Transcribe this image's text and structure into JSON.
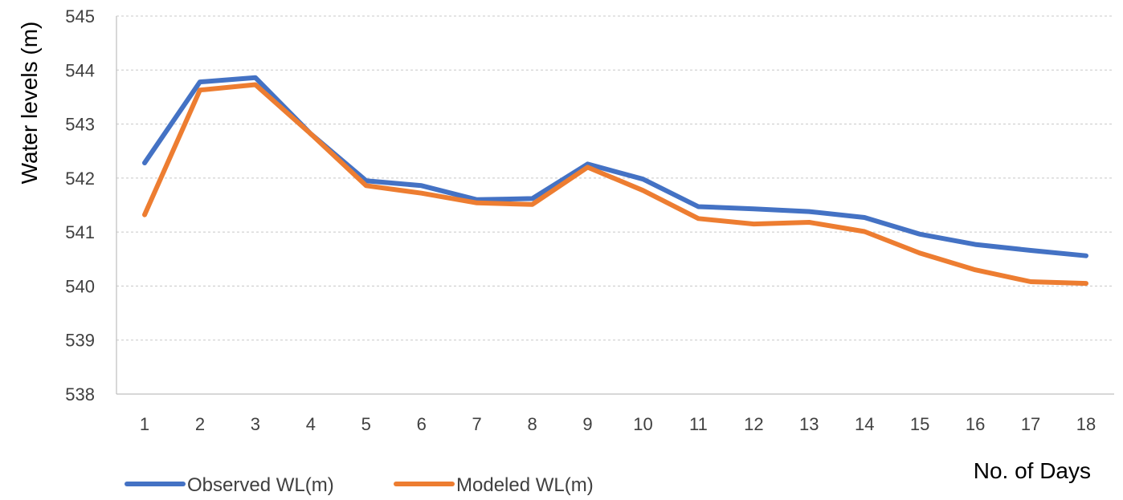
{
  "chart_data": {
    "type": "line",
    "xlabel": "No. of Days",
    "ylabel": "Water levels (m)",
    "x": [
      1,
      2,
      3,
      4,
      5,
      6,
      7,
      8,
      9,
      10,
      11,
      12,
      13,
      14,
      15,
      16,
      17,
      18
    ],
    "ylim": [
      538,
      545
    ],
    "yticks": [
      538,
      539,
      540,
      541,
      542,
      543,
      544,
      545
    ],
    "grid": true,
    "legend_position": "bottom-left",
    "series": [
      {
        "name": "Observed WL(m)",
        "color": "#4472C4",
        "values": [
          542.28,
          543.78,
          543.86,
          542.82,
          541.95,
          541.86,
          541.6,
          541.62,
          542.26,
          541.98,
          541.47,
          541.43,
          541.38,
          541.27,
          540.96,
          540.77,
          540.66,
          540.56
        ]
      },
      {
        "name": "Modeled WL(m)",
        "color": "#ED7D31",
        "values": [
          541.32,
          543.63,
          543.73,
          542.82,
          541.86,
          541.72,
          541.54,
          541.51,
          542.2,
          541.77,
          541.25,
          541.15,
          541.18,
          541.01,
          540.61,
          540.3,
          540.08,
          540.05
        ]
      }
    ]
  }
}
